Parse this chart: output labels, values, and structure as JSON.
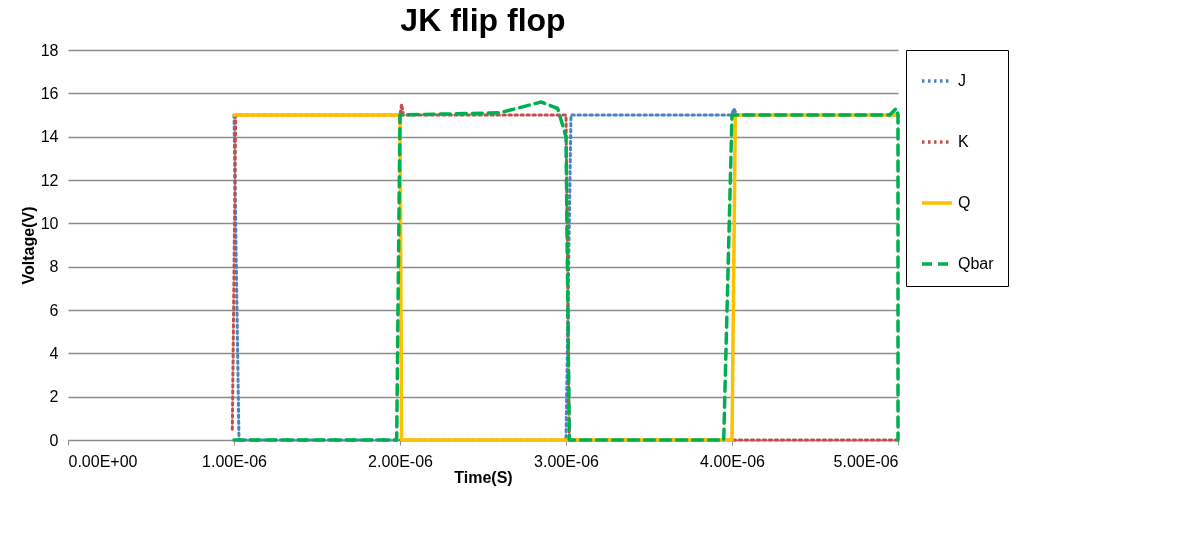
{
  "chart_data": {
    "type": "line",
    "title": "JK flip flop",
    "xlabel": "Time(S)",
    "ylabel": "Voltage(V)",
    "xlim": [
      0,
      5e-06
    ],
    "ylim": [
      0,
      18
    ],
    "xticks": [
      {
        "value": 0,
        "label": "0.00E+00"
      },
      {
        "value": 1e-06,
        "label": "1.00E-06"
      },
      {
        "value": 2e-06,
        "label": "2.00E-06"
      },
      {
        "value": 3e-06,
        "label": "3.00E-06"
      },
      {
        "value": 4e-06,
        "label": "4.00E-06"
      },
      {
        "value": 5e-06,
        "label": "5.00E-06"
      }
    ],
    "yticks": [
      0,
      2,
      4,
      6,
      8,
      10,
      12,
      14,
      16,
      18
    ],
    "grid": "y",
    "legend": "right",
    "marker": "none",
    "series": [
      {
        "name": "J",
        "color": "#4f81bd",
        "line_style": "dotted",
        "x": [
          1e-06,
          1.03e-06,
          3e-06,
          3.03e-06,
          4e-06,
          4.01e-06,
          4.03e-06,
          5e-06
        ],
        "values": [
          15,
          0,
          0,
          15,
          15,
          15.3,
          15,
          15
        ]
      },
      {
        "name": "K",
        "color": "#c0504d",
        "line_style": "dotted",
        "x": [
          9.9e-07,
          1.01e-06,
          2e-06,
          2.01e-06,
          2.02e-06,
          3e-06,
          3.02e-06,
          5e-06
        ],
        "values": [
          0.5,
          15,
          15,
          15.5,
          15,
          15,
          0,
          0
        ]
      },
      {
        "name": "Q",
        "color": "#ffc000",
        "line_style": "solid",
        "x": [
          1e-06,
          2e-06,
          2.01e-06,
          4e-06,
          4.02e-06,
          5e-06
        ],
        "values": [
          15,
          15,
          0,
          0,
          15,
          15
        ]
      },
      {
        "name": "Qbar",
        "color": "#00b050",
        "line_style": "dashed",
        "x": [
          1e-06,
          1.98e-06,
          2e-06,
          2.6e-06,
          2.85e-06,
          2.95e-06,
          3e-06,
          3.02e-06,
          3.95e-06,
          4e-06,
          4.95e-06,
          4.99e-06,
          5e-06,
          5e-06
        ],
        "values": [
          0,
          0,
          15,
          15.1,
          15.6,
          15.3,
          14,
          0,
          0,
          15,
          15,
          15.3,
          15,
          0
        ]
      }
    ]
  }
}
